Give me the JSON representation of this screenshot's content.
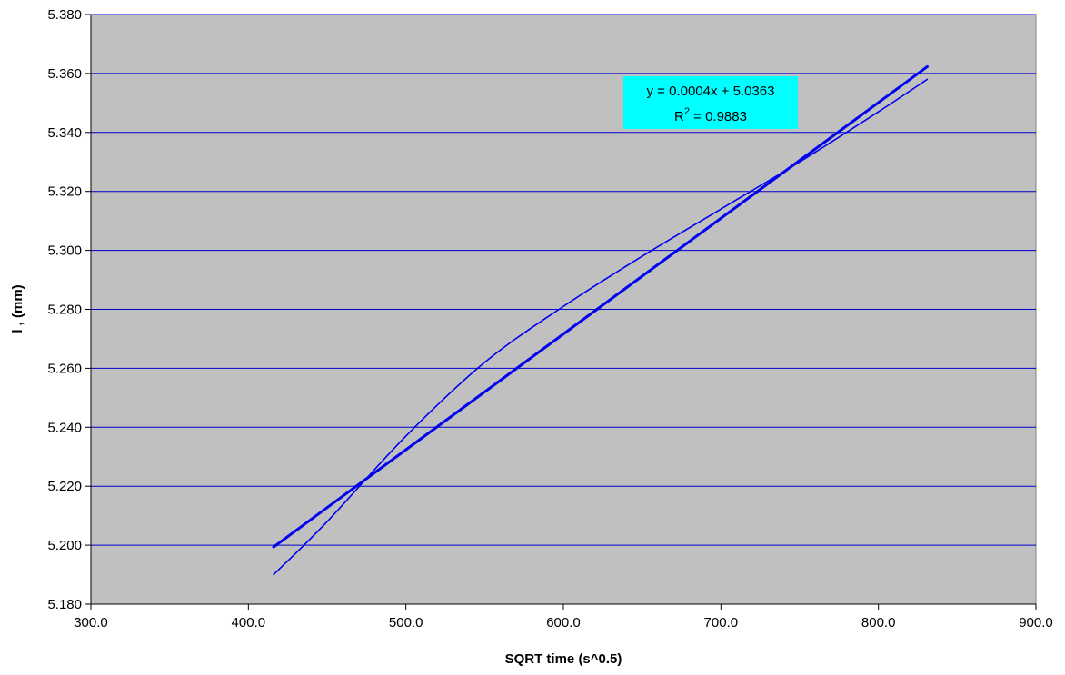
{
  "chart_data": {
    "type": "line",
    "title": "",
    "xlabel": "SQRT time (s^0.5)",
    "ylabel": "l , (mm)",
    "xlim": [
      300,
      900
    ],
    "ylim": [
      5.18,
      5.38
    ],
    "x_ticks": [
      "300.0",
      "400.0",
      "500.0",
      "600.0",
      "700.0",
      "800.0",
      "900.0"
    ],
    "y_ticks": [
      "5.180",
      "5.200",
      "5.220",
      "5.240",
      "5.260",
      "5.280",
      "5.300",
      "5.320",
      "5.340",
      "5.360",
      "5.380"
    ],
    "grid": "horizontal",
    "legend": "none",
    "series": [
      {
        "kind": "data",
        "x": [
          416,
          450,
          500,
          550,
          600,
          650,
          700,
          750,
          800,
          831
        ],
        "y": [
          5.19,
          5.208,
          5.237,
          5.262,
          5.281,
          5.298,
          5.314,
          5.33,
          5.347,
          5.358
        ]
      },
      {
        "kind": "trendline",
        "slope": 0.0004,
        "intercept": 5.0363,
        "x": [
          416,
          831
        ],
        "y": [
          5.1994,
          5.3623
        ]
      }
    ],
    "annotations": {
      "equation": "y = 0.0004x + 5.0363",
      "r_squared_prefix": "R",
      "r_squared_sup": "2",
      "r_squared_value": " = 0.9883"
    },
    "colors": {
      "plot_background": "#c0c0c0",
      "gridline": "#0000cc",
      "series": "#0000ee",
      "equation_box": "#00ffff"
    }
  }
}
